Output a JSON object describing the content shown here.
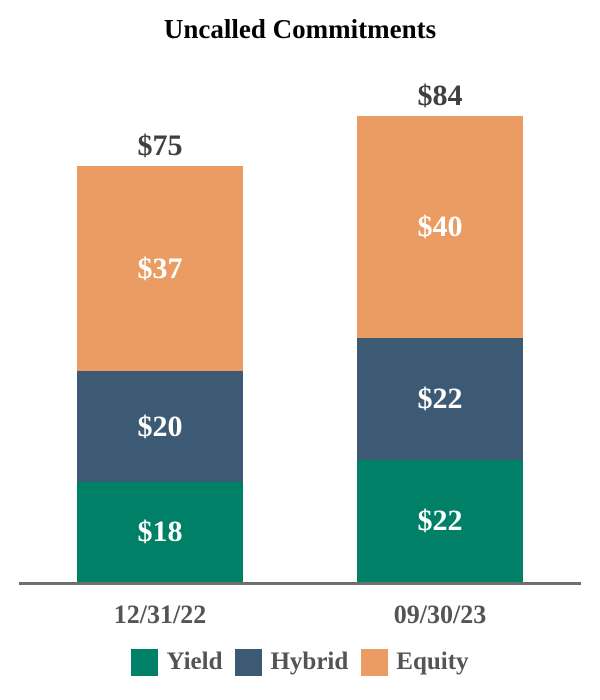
{
  "title": "Uncalled Commitments",
  "chart_data": {
    "type": "bar",
    "stacked": true,
    "title": "Uncalled Commitments",
    "categories": [
      "12/31/22",
      "09/30/23"
    ],
    "series": [
      {
        "name": "Yield",
        "color": "#008066",
        "values": [
          18,
          22
        ]
      },
      {
        "name": "Hybrid",
        "color": "#3D5A75",
        "values": [
          20,
          22
        ]
      },
      {
        "name": "Equity",
        "color": "#EB9C63",
        "values": [
          37,
          40
        ]
      }
    ],
    "totals": [
      75,
      84
    ],
    "total_labels": [
      "$75",
      "$84"
    ],
    "value_prefix": "$",
    "xlabel": "",
    "ylabel": "",
    "ylim": [
      0,
      90
    ],
    "grid": false,
    "legend_position": "bottom",
    "legend": [
      "Yield",
      "Hybrid",
      "Equity"
    ],
    "colors": {
      "segment_value_text": "#FFFFFF",
      "total_label_text": "#404040",
      "axis_label_text": "#545454",
      "legend_text": "#545454",
      "axis_line": "#6E6E6E",
      "title_text": "#000000",
      "background": "#FFFFFF"
    }
  }
}
